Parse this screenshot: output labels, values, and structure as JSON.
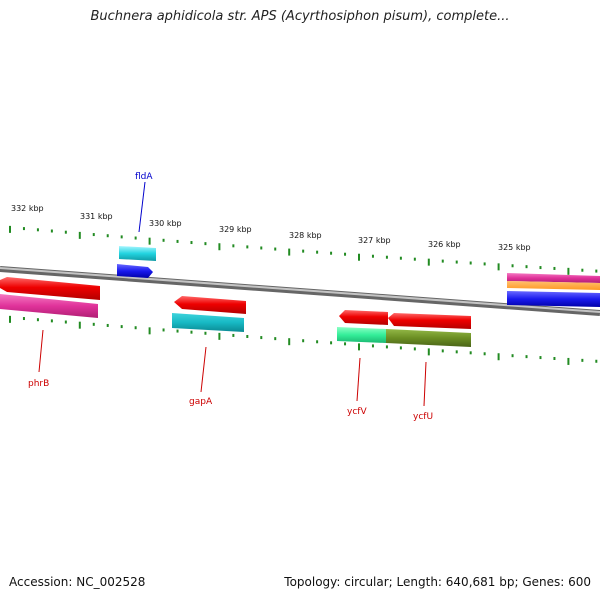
{
  "title": "Buchnera aphidicola str. APS (Acyrthosiphon pisum), complete...",
  "footer": {
    "accession": "Accession: NC_002528",
    "summary": "Topology: circular; Length: 640,681 bp; Genes: 600"
  },
  "ticks": [
    "332 kbp",
    "331 kbp",
    "330 kbp",
    "329 kbp",
    "328 kbp",
    "327 kbp",
    "326 kbp",
    "325 kbp"
  ],
  "gene_labels": [
    {
      "name": "fldA",
      "color": "#0000cc"
    },
    {
      "name": "phrB",
      "color": "#cc0000"
    },
    {
      "name": "gapA",
      "color": "#cc0000"
    },
    {
      "name": "ycfV",
      "color": "#cc0000"
    },
    {
      "name": "ycfU",
      "color": "#cc0000"
    }
  ],
  "colors": {
    "backbone": "#888888",
    "tick": "#228b22",
    "gene_red": "#ee0000",
    "gene_pink": "#e0329a",
    "gene_cyan": "#22d4e0",
    "gene_blue": "#1a1aee",
    "gene_green": "#33ee99",
    "gene_olive": "#6b8e23",
    "gene_orange": "#ff9922"
  }
}
